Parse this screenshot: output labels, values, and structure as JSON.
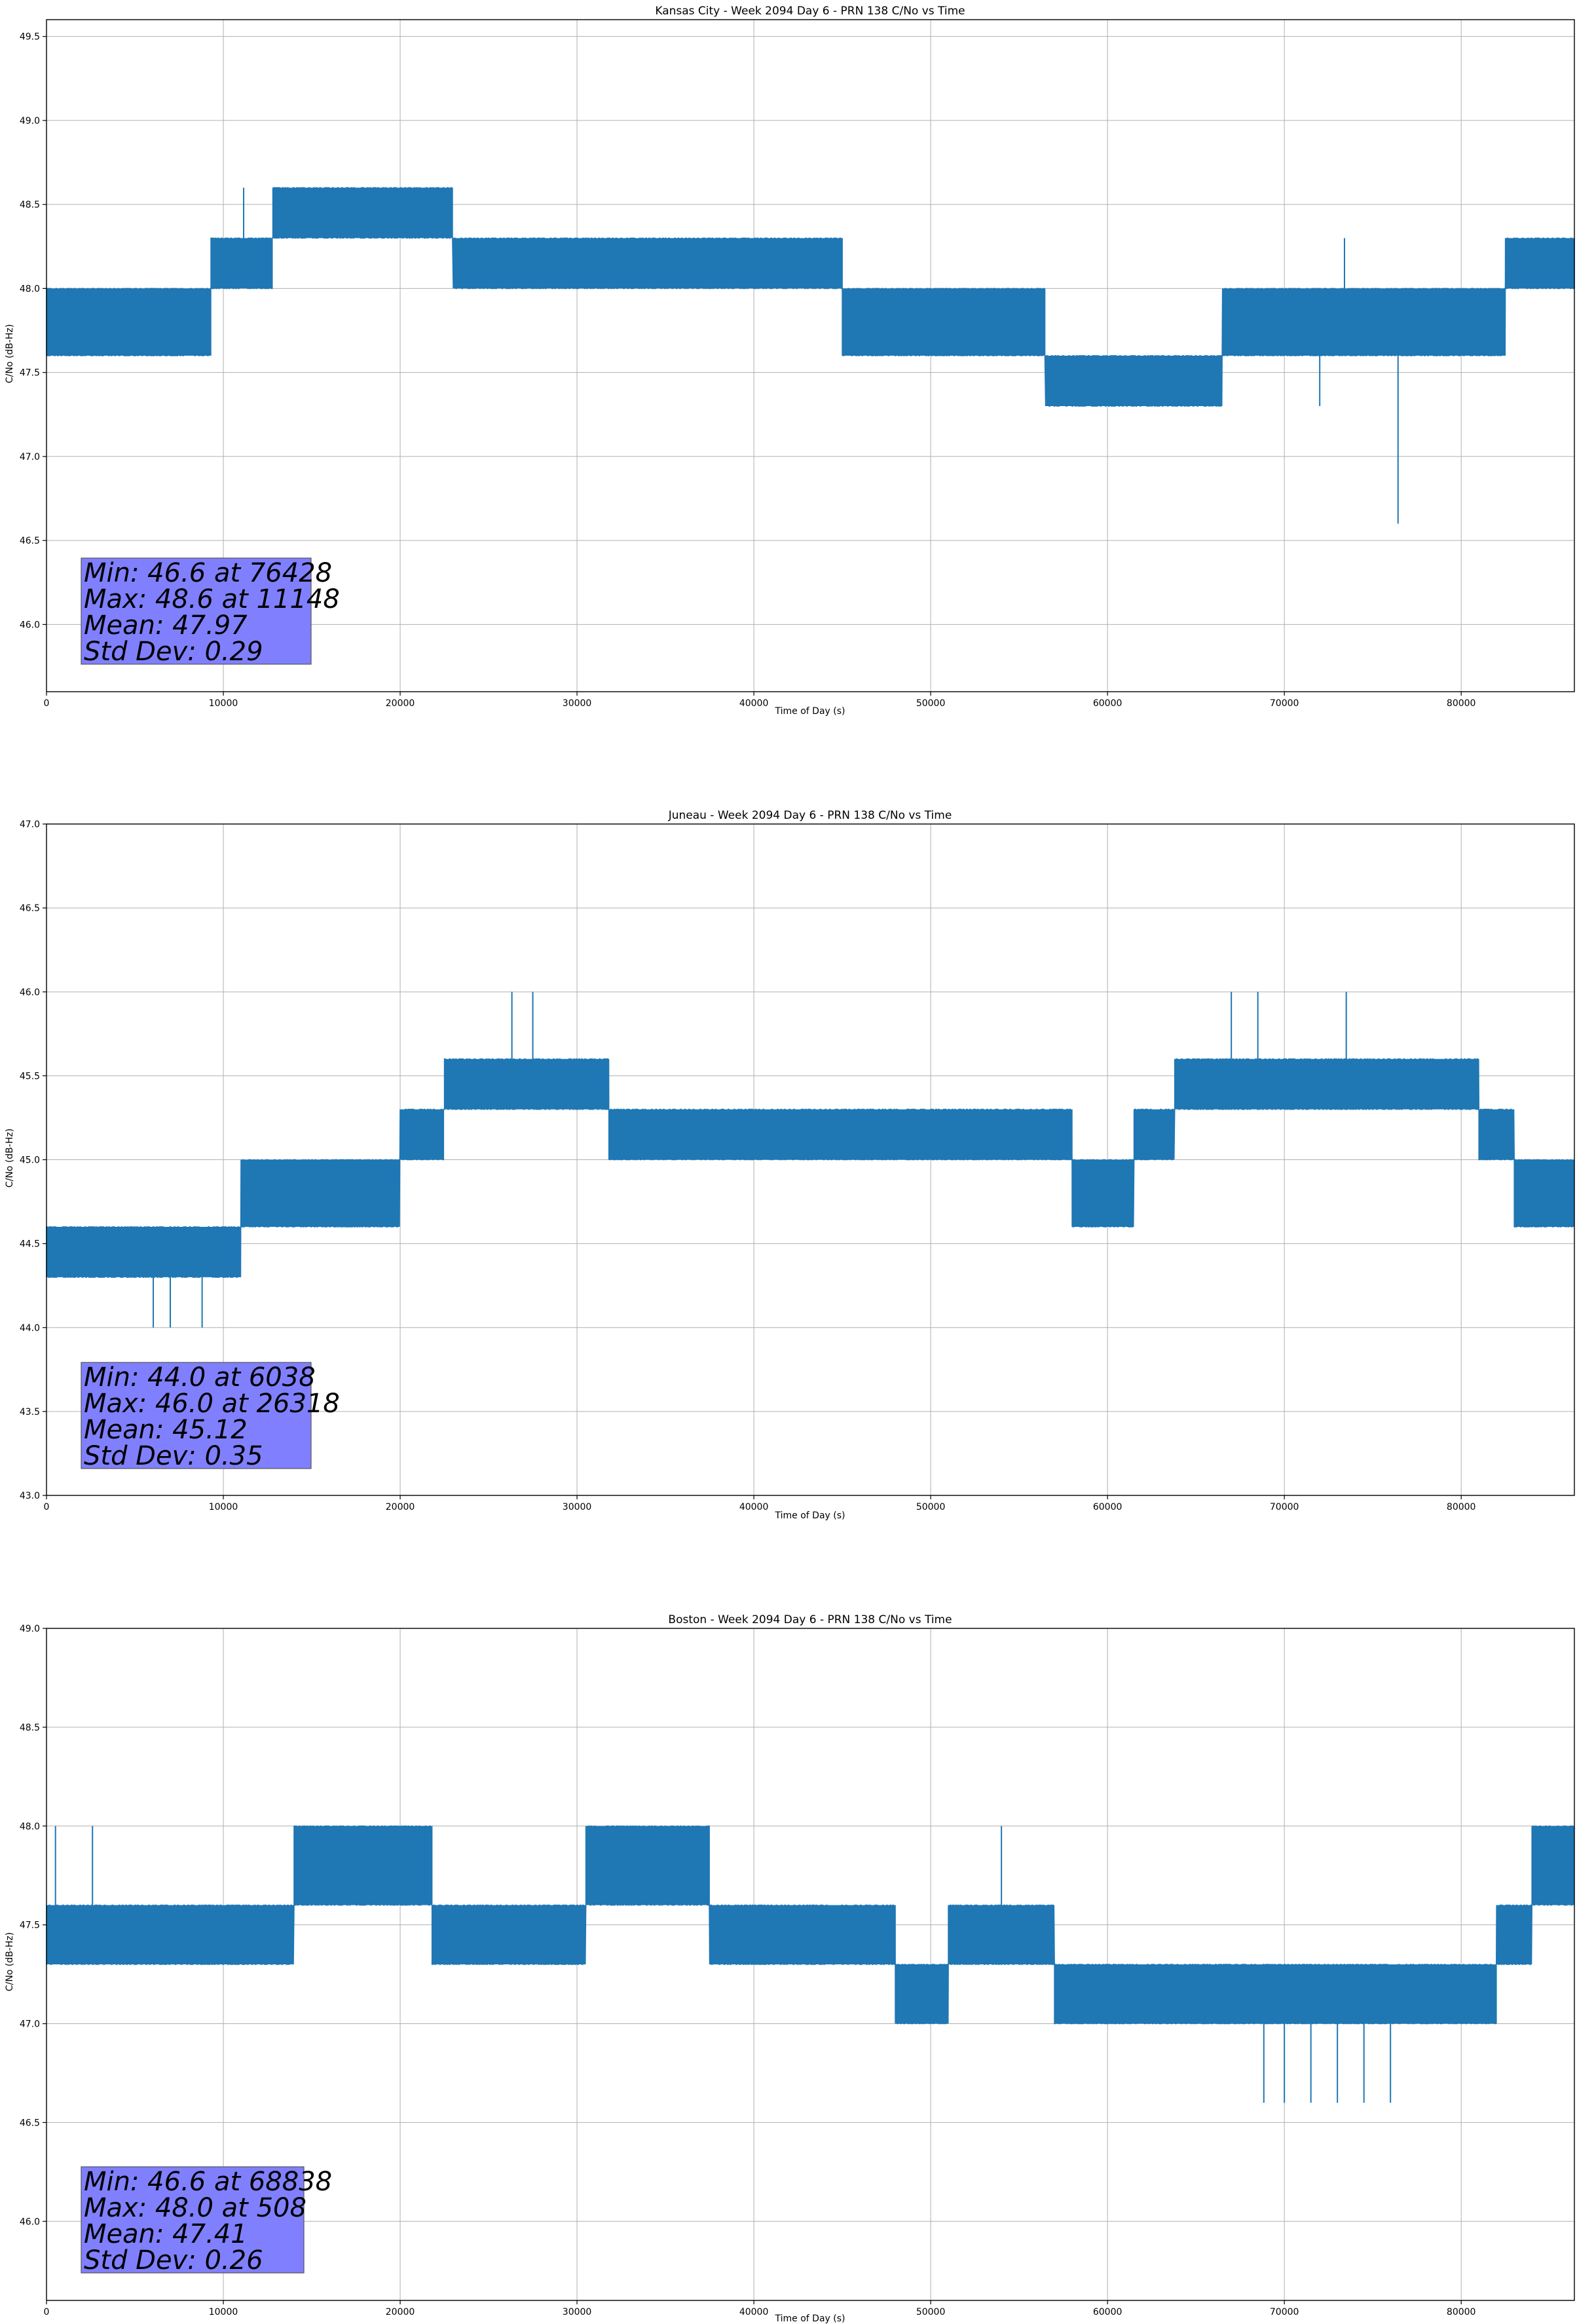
{
  "chart_data": [
    {
      "type": "line",
      "title": "Kansas City - Week 2094 Day 6 - PRN 138 C/No vs Time",
      "xlabel": "Time of Day (s)",
      "ylabel": "C/No (dB-Hz)",
      "xlim": [
        0,
        86400
      ],
      "ylim": [
        45.6,
        49.6
      ],
      "xticks": [
        0,
        10000,
        20000,
        30000,
        40000,
        50000,
        60000,
        70000,
        80000
      ],
      "yticks": [
        46.0,
        46.5,
        47.0,
        47.5,
        48.0,
        48.5,
        49.0,
        49.5
      ],
      "grid": true,
      "series": [
        {
          "color": "#1f77b4",
          "segments": [
            {
              "x0": 0,
              "x1": 9300,
              "lo": 47.6,
              "hi": 48.0
            },
            {
              "x0": 9300,
              "x1": 12800,
              "lo": 48.0,
              "hi": 48.3
            },
            {
              "x0": 12800,
              "x1": 23000,
              "lo": 48.3,
              "hi": 48.6
            },
            {
              "x0": 23000,
              "x1": 32000,
              "lo": 48.0,
              "hi": 48.3
            },
            {
              "x0": 32000,
              "x1": 45000,
              "lo": 48.0,
              "hi": 48.3
            },
            {
              "x0": 45000,
              "x1": 56500,
              "lo": 47.6,
              "hi": 48.0
            },
            {
              "x0": 56500,
              "x1": 66500,
              "lo": 47.3,
              "hi": 47.6
            },
            {
              "x0": 66500,
              "x1": 82500,
              "lo": 47.6,
              "hi": 48.0
            },
            {
              "x0": 82500,
              "x1": 86400,
              "lo": 48.0,
              "hi": 48.3
            }
          ],
          "spikes": [
            {
              "x": 76428,
              "lo": 46.6,
              "hi": 47.6
            },
            {
              "x": 11148,
              "lo": 48.3,
              "hi": 48.6
            },
            {
              "x": 72000,
              "lo": 47.3,
              "hi": 47.6
            },
            {
              "x": 73400,
              "lo": 48.0,
              "hi": 48.3
            }
          ]
        }
      ],
      "stats": [
        "Min: 46.6 at 76428",
        "Max: 48.6 at 11148",
        "Mean: 47.97",
        "Std Dev: 0.29"
      ]
    },
    {
      "type": "line",
      "title": "Juneau - Week 2094 Day 6 - PRN 138 C/No vs Time",
      "xlabel": "Time of Day (s)",
      "ylabel": "C/No (dB-Hz)",
      "xlim": [
        0,
        86400
      ],
      "ylim": [
        43.0,
        47.0
      ],
      "xticks": [
        0,
        10000,
        20000,
        30000,
        40000,
        50000,
        60000,
        70000,
        80000
      ],
      "yticks": [
        43.0,
        43.5,
        44.0,
        44.5,
        45.0,
        45.5,
        46.0,
        46.5,
        47.0
      ],
      "grid": true,
      "series": [
        {
          "color": "#1f77b4",
          "segments": [
            {
              "x0": 0,
              "x1": 11000,
              "lo": 44.3,
              "hi": 44.6
            },
            {
              "x0": 11000,
              "x1": 20000,
              "lo": 44.6,
              "hi": 45.0
            },
            {
              "x0": 20000,
              "x1": 22500,
              "lo": 45.0,
              "hi": 45.3
            },
            {
              "x0": 22500,
              "x1": 31800,
              "lo": 45.3,
              "hi": 45.6
            },
            {
              "x0": 31800,
              "x1": 58000,
              "lo": 45.0,
              "hi": 45.3
            },
            {
              "x0": 58000,
              "x1": 61500,
              "lo": 44.6,
              "hi": 45.0
            },
            {
              "x0": 61500,
              "x1": 63800,
              "lo": 45.0,
              "hi": 45.3
            },
            {
              "x0": 63800,
              "x1": 81000,
              "lo": 45.3,
              "hi": 45.6
            },
            {
              "x0": 81000,
              "x1": 83000,
              "lo": 45.0,
              "hi": 45.3
            },
            {
              "x0": 83000,
              "x1": 86400,
              "lo": 44.6,
              "hi": 45.0
            }
          ],
          "spikes": [
            {
              "x": 6038,
              "lo": 44.0,
              "hi": 44.3
            },
            {
              "x": 7000,
              "lo": 44.0,
              "hi": 44.3
            },
            {
              "x": 8800,
              "lo": 44.0,
              "hi": 44.3
            },
            {
              "x": 26318,
              "lo": 45.6,
              "hi": 46.0
            },
            {
              "x": 27500,
              "lo": 45.6,
              "hi": 46.0
            },
            {
              "x": 67000,
              "lo": 45.6,
              "hi": 46.0
            },
            {
              "x": 68500,
              "lo": 45.6,
              "hi": 46.0
            },
            {
              "x": 73500,
              "lo": 45.6,
              "hi": 46.0
            }
          ]
        }
      ],
      "stats": [
        "Min: 44.0 at 6038",
        "Max: 46.0 at 26318",
        "Mean: 45.12",
        "Std Dev: 0.35"
      ]
    },
    {
      "type": "line",
      "title": "Boston - Week 2094 Day 6 - PRN 138 C/No vs Time",
      "xlabel": "Time of Day (s)",
      "ylabel": "C/No (dB-Hz)",
      "xlim": [
        0,
        86400
      ],
      "ylim": [
        45.6,
        49.0
      ],
      "xticks": [
        0,
        10000,
        20000,
        30000,
        40000,
        50000,
        60000,
        70000,
        80000
      ],
      "yticks": [
        46.0,
        46.5,
        47.0,
        47.5,
        48.0,
        48.5,
        49.0
      ],
      "grid": true,
      "series": [
        {
          "color": "#1f77b4",
          "segments": [
            {
              "x0": 0,
              "x1": 14000,
              "lo": 47.3,
              "hi": 47.6
            },
            {
              "x0": 14000,
              "x1": 21800,
              "lo": 47.6,
              "hi": 48.0
            },
            {
              "x0": 21800,
              "x1": 30500,
              "lo": 47.3,
              "hi": 47.6
            },
            {
              "x0": 30500,
              "x1": 37500,
              "lo": 47.6,
              "hi": 48.0
            },
            {
              "x0": 37500,
              "x1": 48000,
              "lo": 47.3,
              "hi": 47.6
            },
            {
              "x0": 48000,
              "x1": 51000,
              "lo": 47.0,
              "hi": 47.3
            },
            {
              "x0": 51000,
              "x1": 57000,
              "lo": 47.3,
              "hi": 47.6
            },
            {
              "x0": 57000,
              "x1": 82000,
              "lo": 47.0,
              "hi": 47.3
            },
            {
              "x0": 82000,
              "x1": 84000,
              "lo": 47.3,
              "hi": 47.6
            },
            {
              "x0": 84000,
              "x1": 86400,
              "lo": 47.6,
              "hi": 48.0
            }
          ],
          "spikes": [
            {
              "x": 68838,
              "lo": 46.6,
              "hi": 47.0
            },
            {
              "x": 70000,
              "lo": 46.6,
              "hi": 47.0
            },
            {
              "x": 71500,
              "lo": 46.6,
              "hi": 47.0
            },
            {
              "x": 73000,
              "lo": 46.6,
              "hi": 47.0
            },
            {
              "x": 74500,
              "lo": 46.6,
              "hi": 47.0
            },
            {
              "x": 76000,
              "lo": 46.6,
              "hi": 47.0
            },
            {
              "x": 508,
              "lo": 47.6,
              "hi": 48.0
            },
            {
              "x": 2600,
              "lo": 47.6,
              "hi": 48.0
            },
            {
              "x": 54000,
              "lo": 47.6,
              "hi": 48.0
            }
          ]
        }
      ],
      "stats": [
        "Min: 46.6 at 68838",
        "Max: 48.0 at 508",
        "Mean: 47.41",
        "Std Dev: 0.26"
      ]
    }
  ]
}
